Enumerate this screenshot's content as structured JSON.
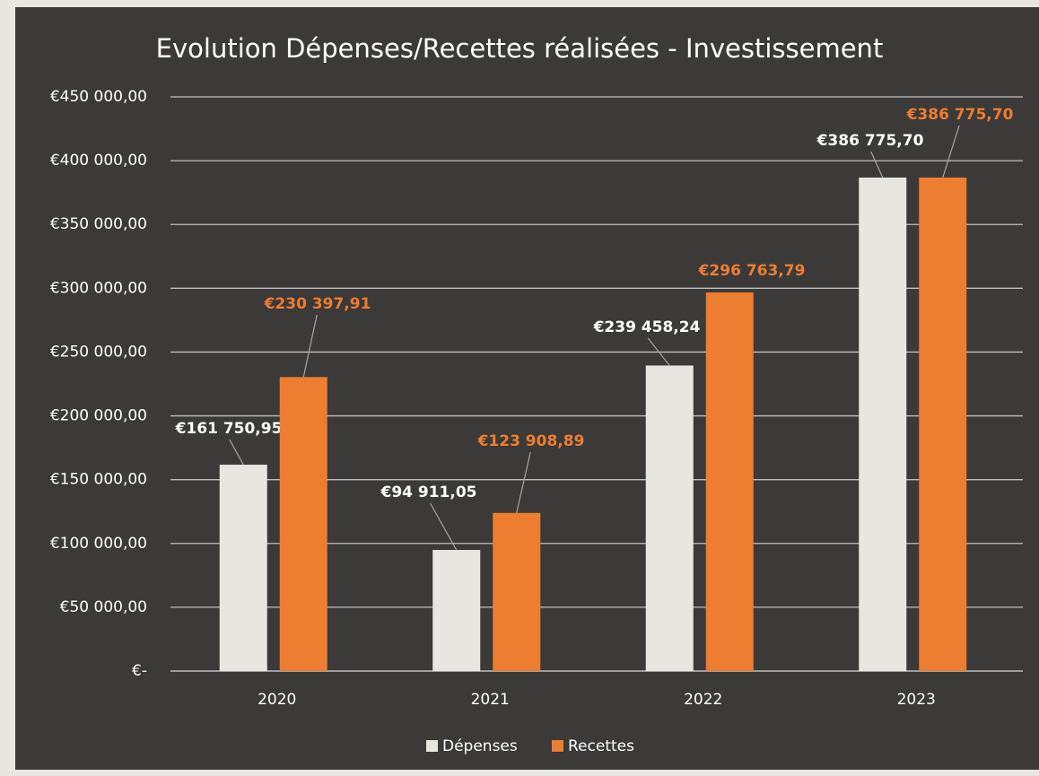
{
  "chart_data": {
    "type": "bar",
    "title": "Evolution Dépenses/Recettes réalisées - Investissement",
    "categories": [
      "2020",
      "2021",
      "2022",
      "2023"
    ],
    "series": [
      {
        "name": "Dépenses",
        "color": "#e8e6e1",
        "label_color": "#ffffff",
        "values": [
          161750.95,
          94911.05,
          239458.24,
          386775.7
        ],
        "value_labels": [
          "€161 750,95",
          "€94 911,05",
          "€239 458,24",
          "€386 775,70"
        ]
      },
      {
        "name": "Recettes",
        "color": "#ed7d31",
        "label_color": "#ed7d31",
        "values": [
          230397.91,
          123908.89,
          296763.79,
          386775.7
        ],
        "value_labels": [
          "€230 397,91",
          "€123 908,89",
          "€296 763,79",
          "€386 775,70"
        ]
      }
    ],
    "ylim": [
      0,
      450000
    ],
    "yticks": [
      {
        "value": 0,
        "label": "€-"
      },
      {
        "value": 50000,
        "label": "€50 000,00"
      },
      {
        "value": 100000,
        "label": "€100 000,00"
      },
      {
        "value": 150000,
        "label": "€150 000,00"
      },
      {
        "value": 200000,
        "label": "€200 000,00"
      },
      {
        "value": 250000,
        "label": "€250 000,00"
      },
      {
        "value": 300000,
        "label": "€300 000,00"
      },
      {
        "value": 350000,
        "label": "€350 000,00"
      },
      {
        "value": 400000,
        "label": "€400 000,00"
      },
      {
        "value": 450000,
        "label": "€450 000,00"
      }
    ],
    "grid": true,
    "legend": "bottom"
  }
}
